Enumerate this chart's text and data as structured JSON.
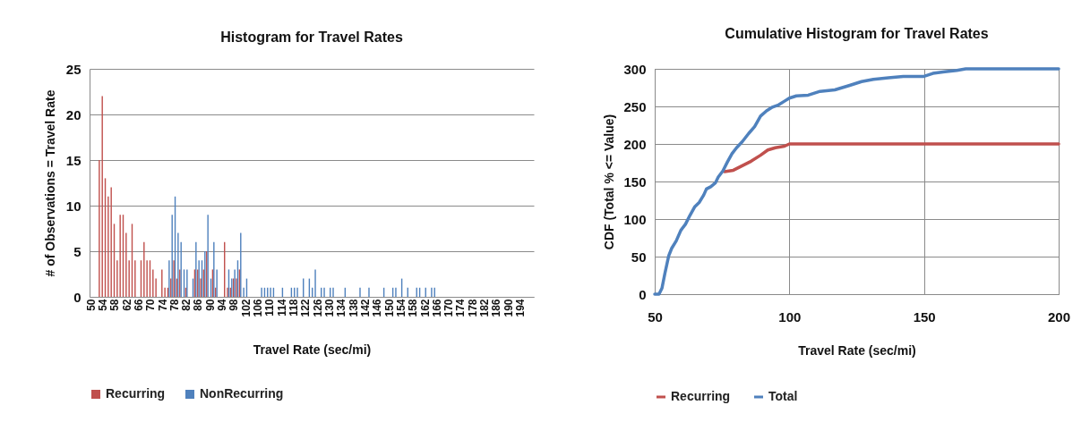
{
  "chart_data": [
    {
      "type": "bar",
      "title": "Histogram for Travel Rates",
      "xlabel": "Travel Rate (sec/mi)",
      "ylabel": "# of Observations = Travel Rate",
      "categories": [
        "50",
        null,
        null,
        null,
        "54",
        null,
        null,
        null,
        "58",
        null,
        null,
        null,
        "62",
        null,
        null,
        null,
        "66",
        null,
        null,
        null,
        "70",
        null,
        null,
        null,
        "74",
        null,
        null,
        null,
        "78",
        null,
        null,
        null,
        "82",
        null,
        null,
        null,
        "86",
        null,
        null,
        null,
        "90",
        null,
        null,
        null,
        "94",
        null,
        null,
        null,
        "98",
        null,
        null,
        null,
        "102",
        null,
        null,
        null,
        "106",
        null,
        null,
        null,
        "110",
        null,
        null,
        null,
        "114",
        null,
        null,
        null,
        "118",
        null,
        null,
        null,
        "122",
        null,
        null,
        null,
        "126",
        null,
        null,
        null,
        "130",
        null,
        null,
        null,
        "134",
        null,
        null,
        null,
        "138",
        null,
        null,
        null,
        "142",
        null,
        null,
        null,
        "146",
        null,
        null,
        null,
        "150",
        null,
        null,
        null,
        "154",
        null,
        null,
        null,
        "158",
        null,
        null,
        null,
        "162",
        null,
        null,
        null,
        "166",
        null,
        null,
        null,
        "170",
        null,
        null,
        null,
        "174",
        null,
        null,
        null,
        "178",
        null,
        null,
        null,
        "182",
        null,
        null,
        null,
        "186",
        null,
        null,
        null,
        "190",
        null,
        null,
        null,
        "194",
        null,
        null,
        null,
        null
      ],
      "series": [
        {
          "name": "Recurring",
          "color": "#c0504d",
          "values": [
            0,
            0,
            0,
            15,
            22,
            13,
            11,
            12,
            8,
            4,
            9,
            9,
            7,
            4,
            8,
            4,
            0,
            4,
            6,
            4,
            4,
            3,
            2,
            0,
            3,
            1,
            1,
            2,
            4,
            2,
            3,
            0,
            1,
            0,
            0,
            3,
            3,
            2,
            3,
            5,
            0,
            3,
            1,
            0,
            0,
            6,
            1,
            1,
            2,
            2,
            3,
            0,
            0,
            0,
            0,
            0,
            0,
            0,
            0,
            0,
            0,
            0,
            0,
            0,
            0,
            0,
            0,
            0,
            0,
            0,
            0,
            0,
            0,
            0,
            0,
            0,
            0,
            0,
            0,
            0,
            0,
            0,
            0,
            0,
            0,
            0,
            0,
            0,
            0,
            0,
            0,
            0,
            0,
            0,
            0,
            0,
            0,
            0,
            0,
            0,
            0,
            0,
            0,
            0,
            0,
            0,
            0,
            0,
            0,
            0,
            0,
            0,
            0,
            0,
            0,
            0,
            0,
            0,
            0,
            0,
            0,
            0,
            0,
            0,
            0,
            0,
            0,
            0,
            0,
            0,
            0,
            0,
            0,
            0,
            0,
            0,
            0,
            0,
            0,
            0,
            0,
            0,
            0,
            0,
            0,
            0,
            0,
            0,
            0
          ]
        },
        {
          "name": "NonRecurring",
          "color": "#4f81bd",
          "values": [
            0,
            0,
            0,
            0,
            0,
            0,
            0,
            0,
            0,
            0,
            0,
            0,
            0,
            0,
            0,
            0,
            0,
            0,
            0,
            0,
            0,
            0,
            0,
            0,
            0,
            0,
            4,
            9,
            11,
            7,
            6,
            3,
            3,
            0,
            2,
            6,
            4,
            4,
            5,
            9,
            2,
            6,
            3,
            0,
            0,
            0,
            3,
            2,
            3,
            4,
            7,
            1,
            2,
            0,
            0,
            0,
            0,
            1,
            1,
            1,
            1,
            1,
            0,
            0,
            1,
            0,
            0,
            1,
            1,
            1,
            0,
            2,
            0,
            2,
            1,
            3,
            0,
            1,
            1,
            0,
            1,
            1,
            0,
            0,
            0,
            1,
            0,
            0,
            0,
            0,
            1,
            0,
            0,
            1,
            0,
            0,
            0,
            0,
            1,
            0,
            0,
            1,
            1,
            0,
            2,
            0,
            1,
            0,
            0,
            1,
            1,
            0,
            1,
            0,
            1,
            1,
            0,
            0,
            0,
            0,
            0,
            0,
            0,
            0,
            0,
            0,
            0,
            0,
            0,
            0,
            0,
            0,
            0,
            0,
            0,
            0,
            0,
            0,
            0,
            0,
            0,
            0,
            0,
            0,
            0,
            0,
            0,
            0,
            0
          ]
        }
      ],
      "ylim": [
        0,
        25
      ],
      "yticks": [
        0,
        5,
        10,
        15,
        20,
        25
      ],
      "grid": "y",
      "legend": "bottom"
    },
    {
      "type": "line",
      "title": "Cumulative Histogram for Travel Rates",
      "xlabel": "Travel Rate (sec/mi)",
      "ylabel": "CDF (Total % <= Value)",
      "series": [
        {
          "name": "Recurring",
          "color": "#c0504d",
          "x": [
            75.9,
            79.2,
            82.5,
            85.8,
            89.3,
            92,
            94.8,
            98.2,
            100,
            150,
            200
          ],
          "values": [
            163,
            165,
            171,
            177,
            185,
            192,
            195,
            197,
            200,
            200,
            200
          ]
        },
        {
          "name": "Total",
          "color": "#4f81bd",
          "x": [
            50,
            51.6,
            52.7,
            53.8,
            55.2,
            56.3,
            58,
            59.7,
            61.4,
            63.1,
            64.8,
            66.5,
            68.2,
            69.2,
            70.8,
            72.5,
            73.6,
            75.3,
            77,
            78.7,
            80.4,
            82.5,
            84.9,
            87.1,
            89.3,
            91.5,
            93.7,
            96,
            98.2,
            100,
            102.6,
            107,
            111.4,
            116.9,
            122.4,
            126.8,
            131.2,
            136.8,
            142.3,
            150,
            153.3,
            157.7,
            162.2,
            165.5,
            200
          ],
          "values": [
            0,
            0,
            8,
            28,
            51,
            61,
            71,
            85,
            93,
            105,
            116,
            122,
            132,
            140,
            143,
            148,
            156,
            164,
            176,
            187,
            195,
            203,
            214,
            223,
            237,
            244,
            249,
            252,
            257,
            261,
            264,
            265,
            270,
            272,
            278,
            283,
            286,
            288,
            290,
            290,
            294,
            296,
            298,
            300,
            300
          ]
        }
      ],
      "xlim": [
        50,
        200
      ],
      "xticks": [
        50,
        100,
        150,
        200
      ],
      "ylim": [
        0,
        300
      ],
      "yticks": [
        0,
        50,
        100,
        150,
        200,
        250,
        300
      ],
      "grid": true,
      "legend": "bottom"
    }
  ]
}
